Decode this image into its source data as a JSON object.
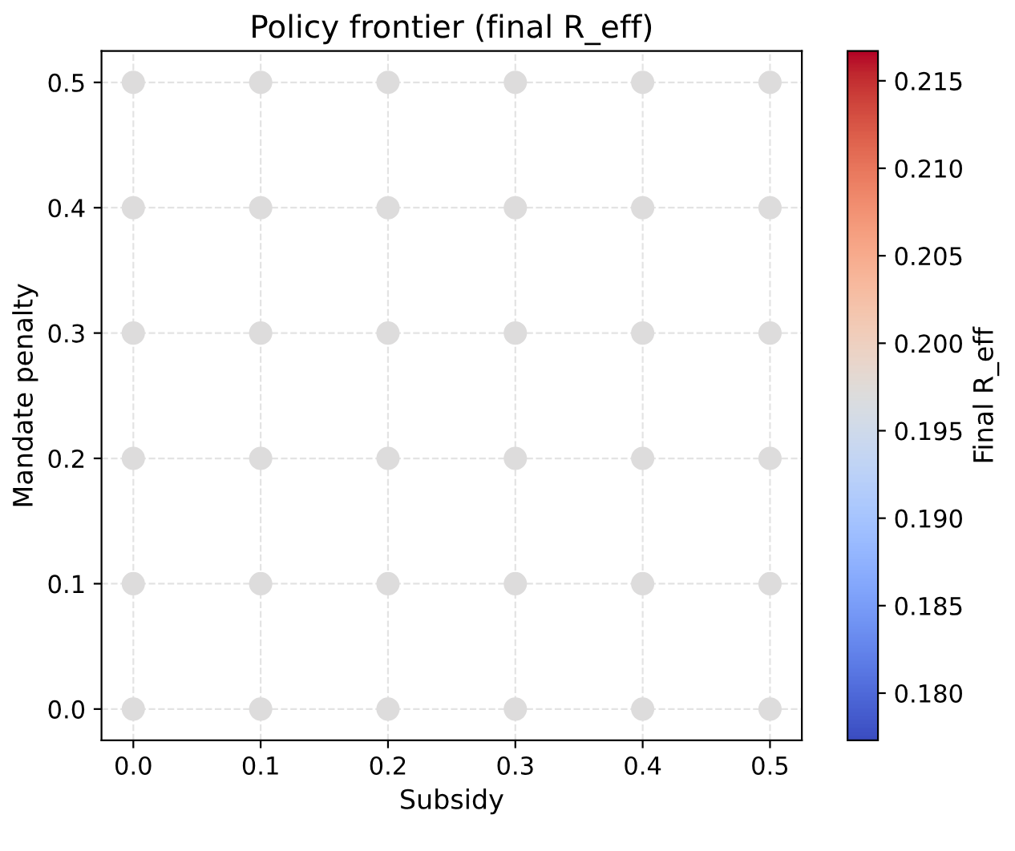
{
  "chart_data": {
    "type": "scatter",
    "title": "Policy frontier (final R_eff)",
    "xlabel": "Subsidy",
    "ylabel": "Mandate penalty",
    "clabel": "Final R_eff",
    "series": [
      {
        "x": [
          0.0,
          0.1,
          0.2,
          0.3,
          0.4,
          0.5,
          0.0,
          0.1,
          0.2,
          0.3,
          0.4,
          0.5,
          0.0,
          0.1,
          0.2,
          0.3,
          0.4,
          0.5,
          0.0,
          0.1,
          0.2,
          0.3,
          0.4,
          0.5,
          0.0,
          0.1,
          0.2,
          0.3,
          0.4,
          0.5,
          0.0,
          0.1,
          0.2,
          0.3,
          0.4,
          0.5
        ],
        "values": [
          0.0,
          0.0,
          0.0,
          0.0,
          0.0,
          0.0,
          0.1,
          0.1,
          0.1,
          0.1,
          0.1,
          0.1,
          0.2,
          0.2,
          0.2,
          0.2,
          0.2,
          0.2,
          0.3,
          0.3,
          0.3,
          0.3,
          0.3,
          0.3,
          0.4,
          0.4,
          0.4,
          0.4,
          0.4,
          0.4,
          0.5,
          0.5,
          0.5,
          0.5,
          0.5,
          0.5
        ],
        "cvalues": [
          0.197,
          0.197,
          0.197,
          0.197,
          0.197,
          0.197,
          0.197,
          0.197,
          0.197,
          0.197,
          0.197,
          0.197,
          0.197,
          0.197,
          0.197,
          0.197,
          0.197,
          0.197,
          0.197,
          0.197,
          0.197,
          0.197,
          0.197,
          0.197,
          0.197,
          0.197,
          0.197,
          0.197,
          0.197,
          0.197,
          0.197,
          0.197,
          0.197,
          0.197,
          0.197,
          0.197
        ]
      }
    ],
    "xlim": [
      -0.025,
      0.525
    ],
    "ylim": [
      -0.025,
      0.525
    ],
    "xticks": [
      {
        "value": 0.0,
        "label": "0.0"
      },
      {
        "value": 0.1,
        "label": "0.1"
      },
      {
        "value": 0.2,
        "label": "0.2"
      },
      {
        "value": 0.3,
        "label": "0.3"
      },
      {
        "value": 0.4,
        "label": "0.4"
      },
      {
        "value": 0.5,
        "label": "0.5"
      }
    ],
    "yticks": [
      {
        "value": 0.0,
        "label": "0.0"
      },
      {
        "value": 0.1,
        "label": "0.1"
      },
      {
        "value": 0.2,
        "label": "0.2"
      },
      {
        "value": 0.3,
        "label": "0.3"
      },
      {
        "value": 0.4,
        "label": "0.4"
      },
      {
        "value": 0.5,
        "label": "0.5"
      }
    ],
    "clim": [
      0.1773,
      0.2167
    ],
    "cticks": [
      {
        "value": 0.18,
        "label": "0.180"
      },
      {
        "value": 0.185,
        "label": "0.185"
      },
      {
        "value": 0.19,
        "label": "0.190"
      },
      {
        "value": 0.195,
        "label": "0.195"
      },
      {
        "value": 0.2,
        "label": "0.200"
      },
      {
        "value": 0.205,
        "label": "0.205"
      },
      {
        "value": 0.21,
        "label": "0.210"
      },
      {
        "value": 0.215,
        "label": "0.215"
      }
    ],
    "grid": true,
    "marker": "circle",
    "legend": false
  }
}
